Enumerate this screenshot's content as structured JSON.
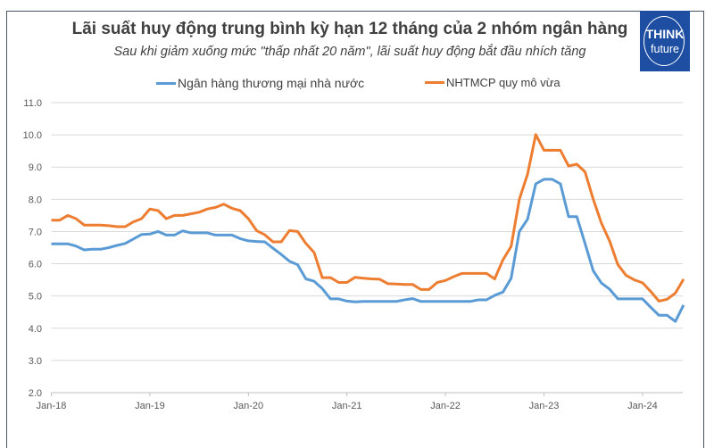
{
  "chart_data": {
    "type": "line",
    "title": "Lãi suất huy động trung bình kỳ hạn 12 tháng của 2 nhóm ngân hàng",
    "subtitle": "Sau khi giảm xuống mức \"thấp nhất 20 năm\", lãi suất huy động bắt đầu nhích tăng",
    "xlabel": "",
    "ylabel": "",
    "ylim": [
      2.0,
      11.0
    ],
    "yticks": [
      "2.0",
      "3.0",
      "4.0",
      "5.0",
      "6.0",
      "7.0",
      "8.0",
      "9.0",
      "10.0",
      "11.0"
    ],
    "xticks": [
      "Jan-18",
      "Jan-19",
      "Jan-20",
      "Jan-21",
      "Jan-22",
      "Jan-23",
      "Jan-24"
    ],
    "x_start": "Jan-18",
    "x_frequency": "monthly",
    "grid": true,
    "legend_position": "top",
    "series": [
      {
        "name": "Ngân hàng thương mại nhà nước",
        "color": "#5b9bd5",
        "values": [
          6.62,
          6.62,
          6.62,
          6.55,
          6.43,
          6.45,
          6.45,
          6.5,
          6.57,
          6.63,
          6.77,
          6.91,
          6.92,
          7.0,
          6.89,
          6.89,
          7.02,
          6.96,
          6.96,
          6.96,
          6.89,
          6.89,
          6.89,
          6.78,
          6.71,
          6.69,
          6.68,
          6.48,
          6.29,
          6.08,
          5.97,
          5.53,
          5.46,
          5.23,
          4.91,
          4.91,
          4.84,
          4.82,
          4.83,
          4.83,
          4.83,
          4.83,
          4.83,
          4.88,
          4.92,
          4.83,
          4.83,
          4.83,
          4.83,
          4.83,
          4.83,
          4.83,
          4.88,
          4.88,
          5.02,
          5.12,
          5.55,
          7.0,
          7.38,
          8.48,
          8.62,
          8.62,
          8.48,
          7.46,
          7.46,
          6.63,
          5.78,
          5.4,
          5.21,
          4.91,
          4.91,
          4.91,
          4.91,
          4.65,
          4.4,
          4.4,
          4.21,
          4.72
        ]
      },
      {
        "name": "NHTMCP quy mô vừa",
        "color": "#ed7d31",
        "values": [
          7.35,
          7.35,
          7.5,
          7.4,
          7.2,
          7.2,
          7.2,
          7.18,
          7.15,
          7.15,
          7.3,
          7.4,
          7.7,
          7.65,
          7.4,
          7.5,
          7.5,
          7.55,
          7.6,
          7.7,
          7.75,
          7.85,
          7.72,
          7.65,
          7.4,
          7.03,
          6.9,
          6.68,
          6.68,
          7.03,
          7.0,
          6.63,
          6.35,
          5.57,
          5.57,
          5.42,
          5.42,
          5.58,
          5.55,
          5.53,
          5.52,
          5.38,
          5.37,
          5.36,
          5.36,
          5.2,
          5.2,
          5.42,
          5.48,
          5.6,
          5.7,
          5.7,
          5.7,
          5.7,
          5.53,
          6.12,
          6.54,
          8.0,
          8.78,
          10.01,
          9.52,
          9.52,
          9.52,
          9.03,
          9.09,
          8.85,
          8.0,
          7.26,
          6.7,
          5.97,
          5.64,
          5.5,
          5.41,
          5.14,
          4.84,
          4.9,
          5.09,
          5.52
        ]
      }
    ]
  },
  "logo": {
    "line1": "THINK",
    "line2": "future",
    "color": "#1d4ea2"
  }
}
